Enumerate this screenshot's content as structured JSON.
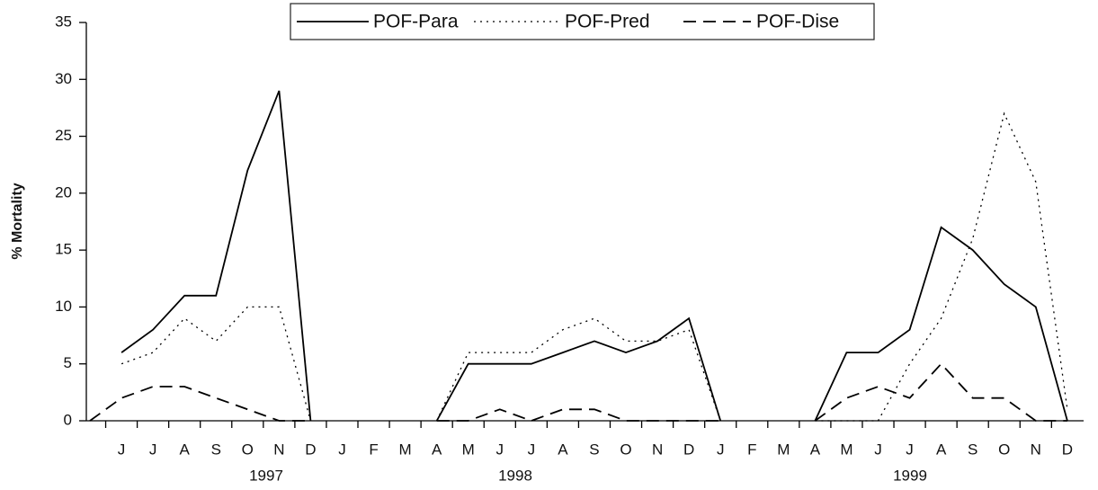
{
  "chart_data": {
    "type": "line",
    "y_label": "% Mortality",
    "categories": [
      null,
      "J",
      "J",
      "A",
      "S",
      "O",
      "N",
      "D",
      "J",
      "F",
      "M",
      "A",
      "M",
      "J",
      "J",
      "A",
      "S",
      "O",
      "N",
      "D",
      "J",
      "F",
      "M",
      "A",
      "M",
      "J",
      "J",
      "A",
      "S",
      "O",
      "N",
      "D"
    ],
    "years": [
      "1997",
      "1998",
      "1999"
    ],
    "series": [
      {
        "name": "POF-Para",
        "color": "#000000",
        "dash": "solid",
        "values": [
          null,
          6,
          8,
          11,
          11,
          22,
          29,
          0,
          null,
          null,
          null,
          0,
          5,
          5,
          5,
          6,
          7,
          6,
          7,
          9,
          0,
          null,
          null,
          0,
          6,
          6,
          8,
          17,
          15,
          12,
          10,
          0
        ]
      },
      {
        "name": "POF-Pred",
        "color": "#000000",
        "dash": "dotted",
        "values": [
          null,
          5,
          6,
          9,
          7,
          10,
          10,
          0,
          null,
          null,
          null,
          0,
          6,
          6,
          6,
          8,
          9,
          7,
          7,
          8,
          0,
          null,
          null,
          0,
          0,
          0,
          5,
          9,
          16,
          27,
          21,
          1
        ]
      },
      {
        "name": "POF-Dise",
        "color": "#000000",
        "dash": "dashed",
        "values": [
          0,
          2,
          3,
          3,
          2,
          1,
          0,
          0,
          null,
          null,
          null,
          0,
          0,
          1,
          0,
          1,
          1,
          0,
          0,
          0,
          0,
          null,
          null,
          0,
          2,
          3,
          2,
          5,
          2,
          2,
          0,
          0
        ]
      }
    ],
    "ylim": [
      0,
      35
    ],
    "yticks": [
      0,
      5,
      10,
      15,
      20,
      25,
      30,
      35
    ],
    "legend": "top",
    "grid": false
  }
}
